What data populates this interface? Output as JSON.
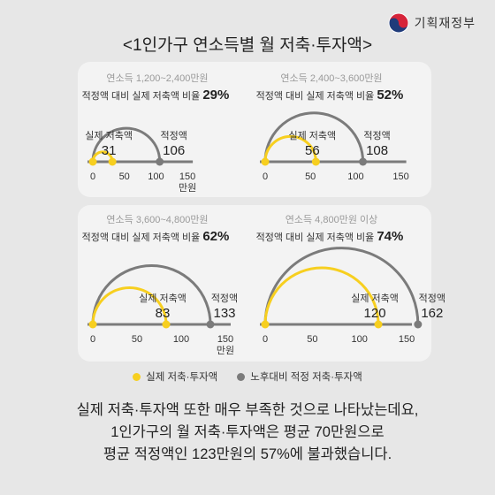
{
  "header": {
    "title": "<1인가구 연소득별 월 저축·투자액>",
    "logo_text": "기획재정부",
    "logo_icon": "taegeuk-icon"
  },
  "colors": {
    "actual": "#f7cf1f",
    "recommended": "#7b7b7b",
    "axis": "#7b7b7b"
  },
  "labels": {
    "actual": "실제 저축액",
    "recommended": "적정액",
    "manwon": "만원"
  },
  "chart_data": [
    {
      "type": "semicircle",
      "title": "연소득 1,200~2,400만원",
      "ratio_label": "적정액 대비 실제 저축액 비율",
      "ratio_value": "29%",
      "actual": 31,
      "recommended": 106,
      "x_ticks": [
        "0",
        "50",
        "100",
        "150"
      ],
      "xlim": [
        0,
        150
      ],
      "unit": "만원"
    },
    {
      "type": "semicircle",
      "title": "연소득 2,400~3,600만원",
      "ratio_label": "적정액 대비 실제 저축액 비율",
      "ratio_value": "52%",
      "actual": 56,
      "recommended": 108,
      "x_ticks": [
        "0",
        "50",
        "100",
        "150"
      ],
      "xlim": [
        0,
        150
      ],
      "unit": ""
    },
    {
      "type": "semicircle",
      "title": "연소득 3,600~4,800만원",
      "ratio_label": "적정액 대비 실제 저축액 비율",
      "ratio_value": "62%",
      "actual": 83,
      "recommended": 133,
      "x_ticks": [
        "0",
        "50",
        "100",
        "150"
      ],
      "xlim": [
        0,
        150
      ],
      "unit": "만원"
    },
    {
      "type": "semicircle",
      "title": "연소득 4,800만원 이상",
      "ratio_label": "적정액 대비 실제 저축액 비율",
      "ratio_value": "74%",
      "actual": 120,
      "recommended": 162,
      "x_ticks": [
        "0",
        "50",
        "100",
        "150"
      ],
      "xlim": [
        0,
        150
      ],
      "unit": ""
    }
  ],
  "legend": {
    "actual": "실제 저축·투자액",
    "recommended": "노후대비 적정 저축·투자액"
  },
  "summary": [
    "실제 저축·투자액 또한 매우 부족한 것으로 나타났는데요,",
    "1인가구의 월 저축·투자액은 평균 70만원으로",
    "평균 적정액인 123만원의 57%에 불과했습니다."
  ]
}
